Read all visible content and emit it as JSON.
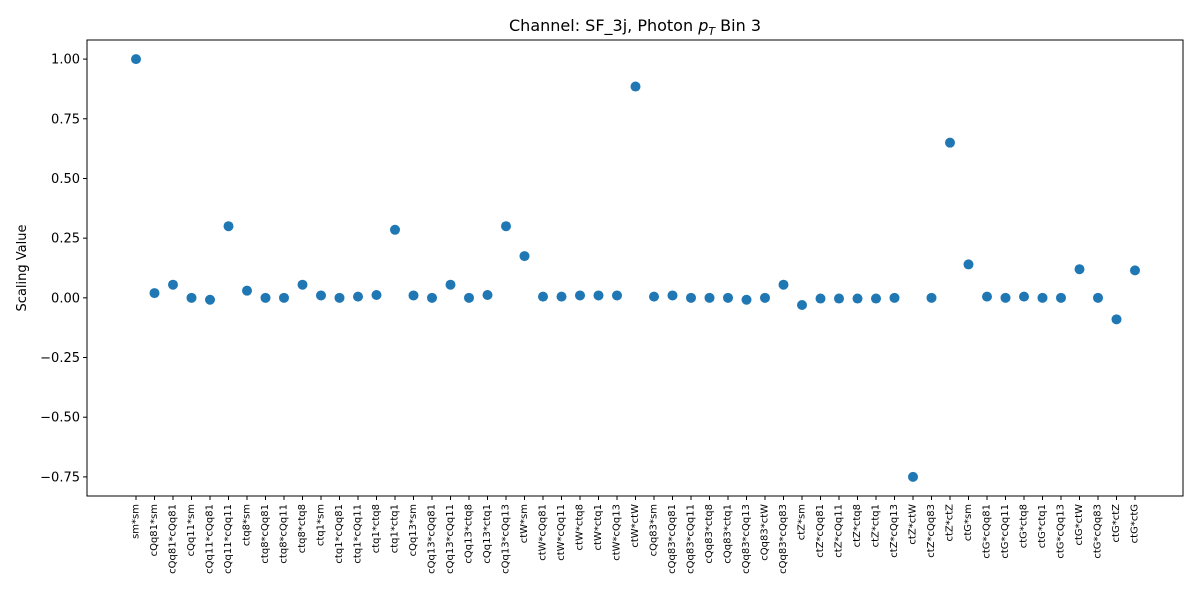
{
  "chart_data": {
    "type": "scatter",
    "title_prefix": "Channel: SF_3j, Photon ",
    "title_symbol": "p",
    "title_subscript": "T",
    "title_suffix": " Bin 3",
    "xlabel": "",
    "ylabel": "Scaling Value",
    "ylim": [
      -0.83,
      1.08
    ],
    "yticks": [
      -0.75,
      -0.5,
      -0.25,
      0.0,
      0.25,
      0.5,
      0.75,
      1.0
    ],
    "ytick_labels": [
      "−0.75",
      "−0.50",
      "−0.25",
      "0.00",
      "0.25",
      "0.50",
      "0.75",
      "1.00"
    ],
    "grid": false,
    "marker_color": "#1f77b4",
    "categories": [
      "sm*sm",
      "cQq81*sm",
      "cQq81*cQq81",
      "cQq11*sm",
      "cQq11*cQq81",
      "cQq11*cQq11",
      "ctq8*sm",
      "ctq8*cQq81",
      "ctq8*cQq11",
      "ctq8*ctq8",
      "ctq1*sm",
      "ctq1*cQq81",
      "ctq1*cQq11",
      "ctq1*ctq8",
      "ctq1*ctq1",
      "cQq13*sm",
      "cQq13*cQq81",
      "cQq13*cQq11",
      "cQq13*ctq8",
      "cQq13*ctq1",
      "cQq13*cQq13",
      "ctW*sm",
      "ctW*cQq81",
      "ctW*cQq11",
      "ctW*ctq8",
      "ctW*ctq1",
      "ctW*cQq13",
      "ctW*ctW",
      "cQq83*sm",
      "cQq83*cQq81",
      "cQq83*cQq11",
      "cQq83*ctq8",
      "cQq83*ctq1",
      "cQq83*cQq13",
      "cQq83*ctW",
      "cQq83*cQq83",
      "ctZ*sm",
      "ctZ*cQq81",
      "ctZ*cQq11",
      "ctZ*ctq8",
      "ctZ*ctq1",
      "ctZ*cQq13",
      "ctZ*ctW",
      "ctZ*cQq83",
      "ctZ*ctZ",
      "ctG*sm",
      "ctG*cQq81",
      "ctG*cQq11",
      "ctG*ctq8",
      "ctG*ctq1",
      "ctG*cQq13",
      "ctG*ctW",
      "ctG*cQq83",
      "ctG*ctZ",
      "ctG*ctG"
    ],
    "values": [
      1.0,
      0.02,
      0.055,
      0.0,
      -0.008,
      0.3,
      0.03,
      0.0,
      0.0,
      0.055,
      0.01,
      0.0,
      0.005,
      0.012,
      0.285,
      0.01,
      0.0,
      0.055,
      0.0,
      0.012,
      0.3,
      0.175,
      0.005,
      0.005,
      0.01,
      0.01,
      0.01,
      0.885,
      0.005,
      0.01,
      0.0,
      0.0,
      0.0,
      -0.008,
      0.0,
      0.055,
      -0.03,
      -0.003,
      -0.003,
      -0.003,
      -0.003,
      0.0,
      -0.75,
      0.0,
      0.65,
      0.14,
      0.005,
      0.0,
      0.005,
      0.0,
      0.0,
      0.12,
      0.0,
      -0.09,
      0.115
    ]
  }
}
